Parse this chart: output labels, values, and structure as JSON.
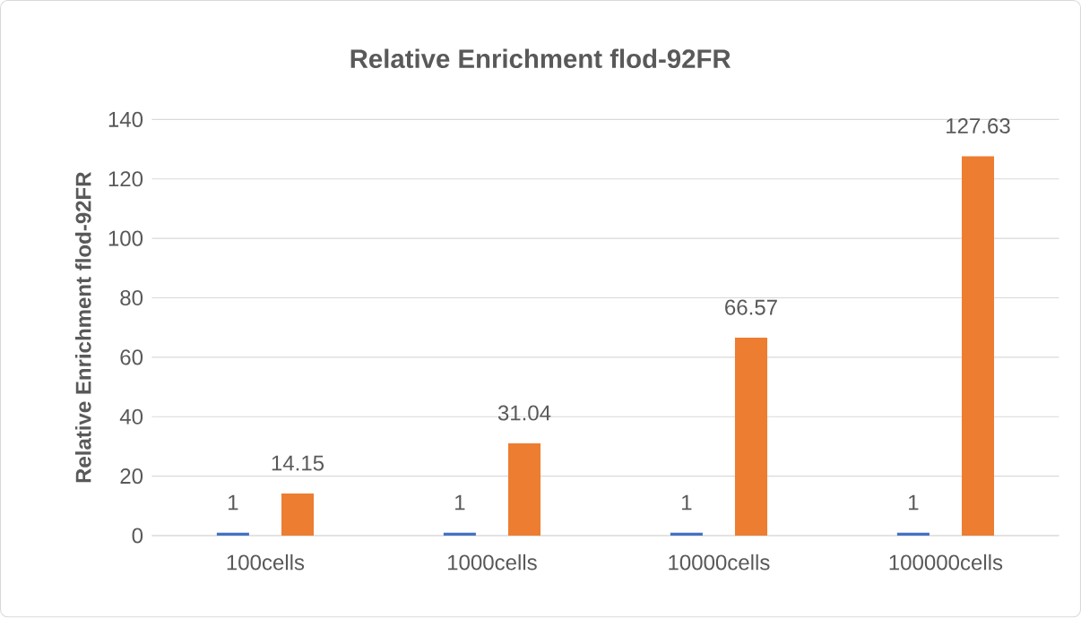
{
  "chart_data": {
    "type": "bar",
    "title": "Relative Enrichment flod-92FR",
    "ylabel": "Relative Enrichment flod-92FR",
    "categories": [
      "100cells",
      "1000cells",
      "10000cells",
      "100000cells"
    ],
    "series": [
      {
        "color": "#4472c4",
        "values": [
          1,
          1,
          1,
          1
        ]
      },
      {
        "color": "#ed7d31",
        "values": [
          14.15,
          31.04,
          66.57,
          127.63
        ]
      }
    ],
    "ylim": [
      0,
      140
    ],
    "yticks": [
      0,
      20,
      40,
      60,
      80,
      100,
      120,
      140
    ],
    "grid": "y",
    "data_labels": true
  }
}
